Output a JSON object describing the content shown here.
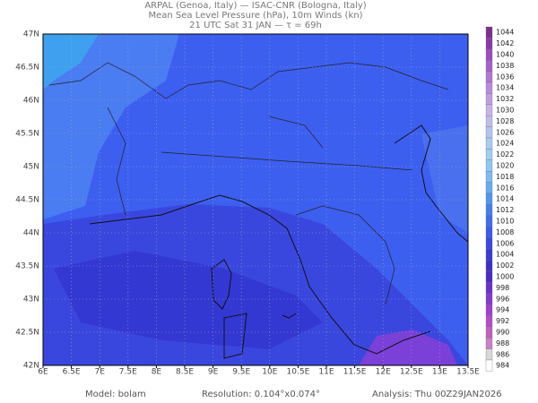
{
  "header": {
    "line1": "ARPAL (Genoa, Italy)  —  ISAC-CNR (Bologna, Italy)",
    "line2": "Mean Sea Level Pressure (hPa), 10m Winds (kn)",
    "line3": "21 UTC Sat 31 JAN  —  τ = 69h"
  },
  "map": {
    "x_labels": [
      "6E",
      "6.5E",
      "7E",
      "7.5E",
      "8E",
      "8.5E",
      "9E",
      "9.5E",
      "10E",
      "10.5E",
      "11E",
      "11.5E",
      "12E",
      "12.5E",
      "13E",
      "13.5E"
    ],
    "y_labels": [
      "47N",
      "46.5N",
      "46N",
      "45.5N",
      "45N",
      "44.5N",
      "44N",
      "43.5N",
      "43N",
      "42.5N",
      "42N"
    ]
  },
  "colorbar": {
    "labels": [
      "1044",
      "1042",
      "1040",
      "1038",
      "1036",
      "1034",
      "1032",
      "1030",
      "1028",
      "1026",
      "1024",
      "1022",
      "1020",
      "1018",
      "1016",
      "1014",
      "1012",
      "1010",
      "1008",
      "1006",
      "1004",
      "1002",
      "1000",
      "998",
      "996",
      "994",
      "992",
      "990",
      "988",
      "986",
      "984"
    ]
  },
  "footer": {
    "model": "Model: bolam",
    "resolution": "Resolution: 0.104°x0.074°",
    "analysis": "Analysis: Thu 00Z29JAN2026"
  }
}
